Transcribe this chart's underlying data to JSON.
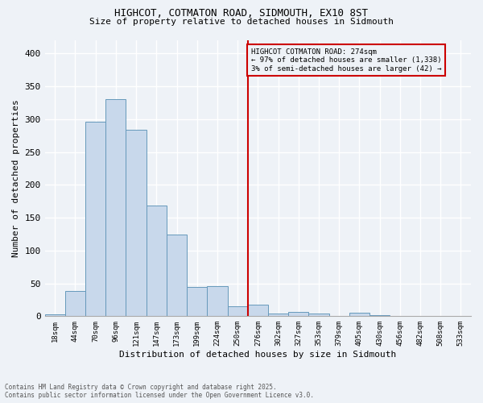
{
  "title_line1": "HIGHCOT, COTMATON ROAD, SIDMOUTH, EX10 8ST",
  "title_line2": "Size of property relative to detached houses in Sidmouth",
  "xlabel": "Distribution of detached houses by size in Sidmouth",
  "ylabel": "Number of detached properties",
  "bin_labels": [
    "18sqm",
    "44sqm",
    "70sqm",
    "96sqm",
    "121sqm",
    "147sqm",
    "173sqm",
    "199sqm",
    "224sqm",
    "250sqm",
    "276sqm",
    "302sqm",
    "327sqm",
    "353sqm",
    "379sqm",
    "405sqm",
    "430sqm",
    "456sqm",
    "482sqm",
    "508sqm",
    "533sqm"
  ],
  "bar_heights": [
    3,
    39,
    296,
    330,
    284,
    169,
    124,
    44,
    46,
    15,
    18,
    4,
    6,
    4,
    0,
    5,
    2,
    0,
    0,
    1,
    0
  ],
  "bar_color": "#c8d8eb",
  "bar_edge_color": "#6699bb",
  "vline_color": "#cc0000",
  "annotation_title": "HIGHCOT COTMATON ROAD: 274sqm",
  "annotation_line2": "← 97% of detached houses are smaller (1,338)",
  "annotation_line3": "3% of semi-detached houses are larger (42) →",
  "annotation_box_color": "#cc0000",
  "ylim": [
    0,
    420
  ],
  "yticks": [
    0,
    50,
    100,
    150,
    200,
    250,
    300,
    350,
    400
  ],
  "footer_line1": "Contains HM Land Registry data © Crown copyright and database right 2025.",
  "footer_line2": "Contains public sector information licensed under the Open Government Licence v3.0.",
  "background_color": "#eef2f7",
  "grid_color": "#ffffff"
}
